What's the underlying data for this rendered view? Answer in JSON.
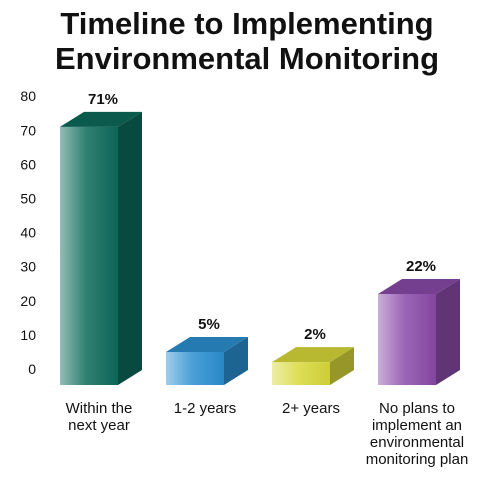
{
  "chart_data": {
    "type": "bar",
    "title_lines": [
      "Timeline to Implementing",
      "Environmental Monitoring"
    ],
    "xlabel": "",
    "ylabel": "",
    "ylim": [
      0,
      80
    ],
    "yticks": [
      0,
      10,
      20,
      30,
      40,
      50,
      60,
      70,
      80
    ],
    "categories": [
      [
        "Within the",
        "next year"
      ],
      [
        "1-2 years"
      ],
      [
        "2+ years"
      ],
      [
        "No plans to",
        "implement an",
        "environmental",
        "monitoring plan"
      ]
    ],
    "values": [
      71,
      5,
      2,
      22
    ],
    "data_labels": [
      "71%",
      "5%",
      "2%",
      "22%"
    ],
    "bar_colors": [
      "#0c6a5a",
      "#2a8fd0",
      "#d8d83a",
      "#8a4aa8"
    ],
    "grid": false,
    "legend": "none"
  }
}
